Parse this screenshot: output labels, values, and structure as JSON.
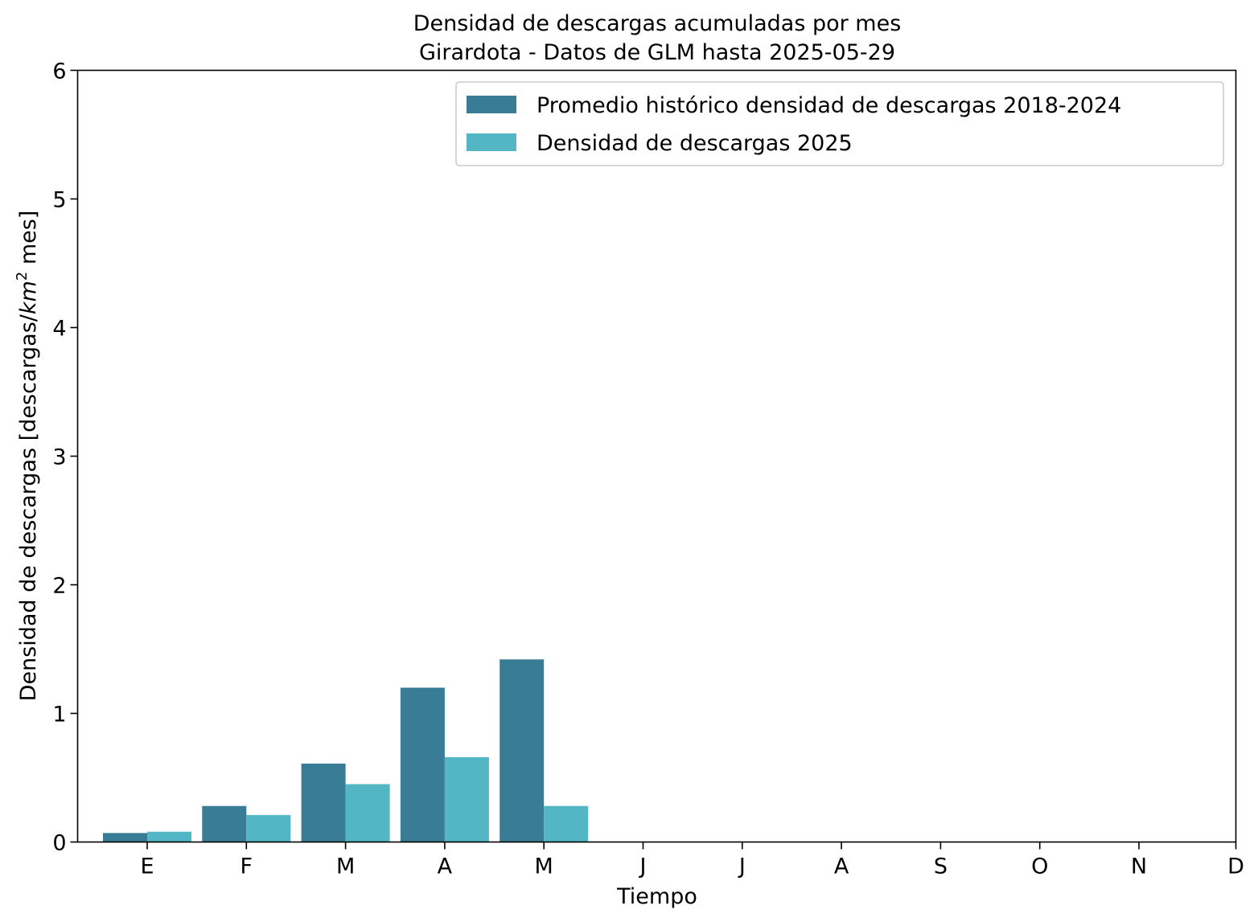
{
  "chart_data": {
    "type": "bar",
    "title": "Densidad de descargas acumuladas por mes",
    "subtitle": "Girardota - Datos de GLM hasta 2025-05-29",
    "xlabel": "Tiempo",
    "ylabel_prefix": "Densidad de descargas [descargas/",
    "ylabel_unit": "km",
    "ylabel_exp": "2",
    "ylabel_suffix": " mes]",
    "ylim": [
      0,
      6
    ],
    "yticks": [
      "0",
      "1",
      "2",
      "3",
      "4",
      "5",
      "6"
    ],
    "categories": [
      "E",
      "F",
      "M",
      "A",
      "M",
      "J",
      "J",
      "A",
      "S",
      "O",
      "N",
      "D"
    ],
    "series": [
      {
        "name": "Promedio histórico densidad de descargas 2018-2024",
        "color": "#387c96",
        "values": [
          0.07,
          0.28,
          0.61,
          1.2,
          1.42,
          0,
          0,
          0,
          0,
          0,
          0,
          0
        ]
      },
      {
        "name": "Densidad de descargas 2025",
        "color": "#52b6c5",
        "values": [
          0.08,
          0.21,
          0.45,
          0.66,
          0.28,
          0,
          0,
          0,
          0,
          0,
          0,
          0
        ]
      }
    ],
    "grid": false,
    "legend_position": "top-right"
  }
}
